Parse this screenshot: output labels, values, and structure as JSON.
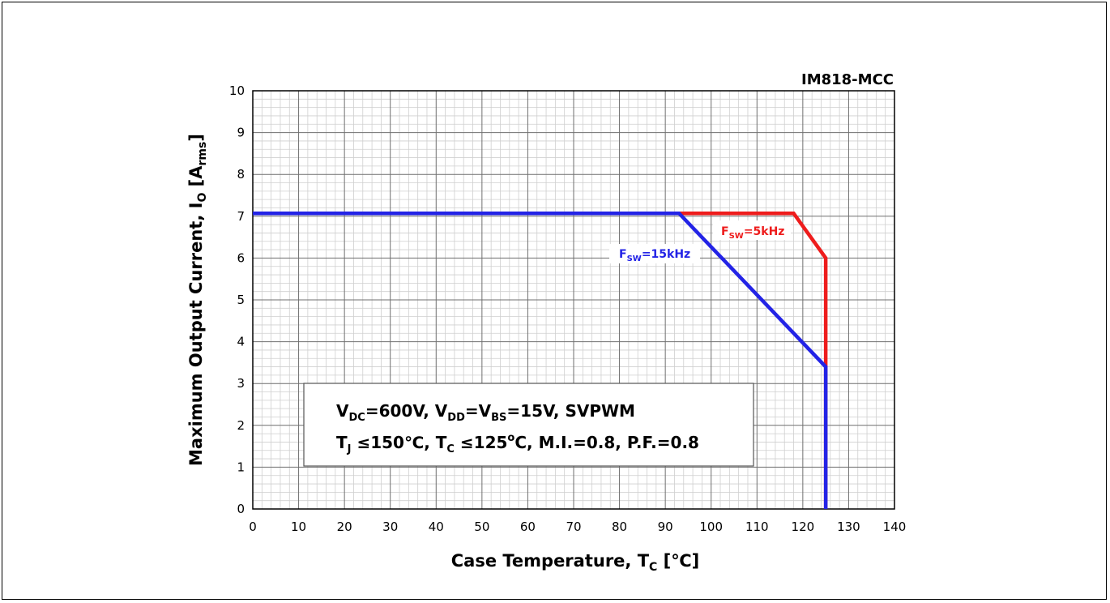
{
  "chart_data": {
    "type": "line",
    "title": "IM818-MCC",
    "xlabel": {
      "main": "Case Temperature, T",
      "sub": "C",
      "unit": " [℃]"
    },
    "ylabel": {
      "main": "Maximum Output Current, I",
      "sub": "O",
      "unit_open": " [A",
      "unit_sub": "rms",
      "unit_close": "]"
    },
    "xlim": [
      0,
      140
    ],
    "ylim": [
      0,
      10
    ],
    "x_ticks": [
      "0",
      "10",
      "20",
      "30",
      "40",
      "50",
      "60",
      "70",
      "80",
      "90",
      "100",
      "110",
      "120",
      "130",
      "140"
    ],
    "y_ticks": [
      "0",
      "1",
      "2",
      "3",
      "4",
      "5",
      "6",
      "7",
      "8",
      "9",
      "10"
    ],
    "grid": true,
    "minor_grid": true,
    "series": [
      {
        "name": "F_SW=5kHz",
        "label_main": "F",
        "label_sub": "SW",
        "label_rest": "=5kHz",
        "color": "#ee1c1c",
        "x": [
          0,
          118,
          125,
          125
        ],
        "y": [
          7.07,
          7.07,
          6.0,
          0
        ]
      },
      {
        "name": "F_SW=15kHz",
        "label_main": "F",
        "label_sub": "SW",
        "label_rest": "=15kHz",
        "color": "#2323e6",
        "x": [
          0,
          93,
          125,
          125
        ],
        "y": [
          7.07,
          7.07,
          3.4,
          0
        ]
      }
    ],
    "annotation": {
      "line1": {
        "p1": "V",
        "s1": "DC",
        "p2": "=600V, V",
        "s2": "DD",
        "p3": "=V",
        "s3": "BS",
        "p4": "=15V, SVPWM"
      },
      "line2": {
        "p1": "T",
        "s1": "J",
        "p2": " ≤150℃, T",
        "s2": "C",
        "p3": " ≤125",
        "sup": "o",
        "p4": "C, M.I.=0.8, P.F.=0.8"
      }
    }
  }
}
